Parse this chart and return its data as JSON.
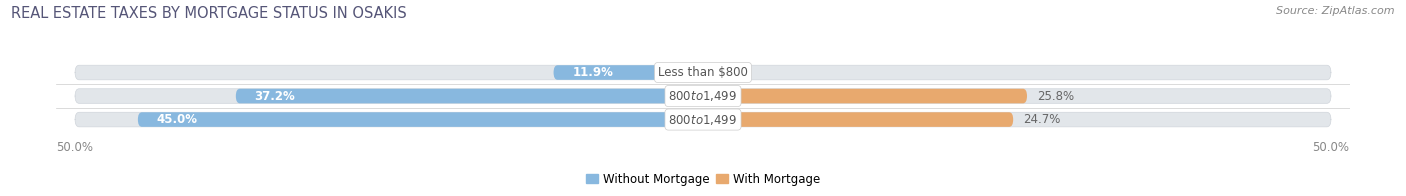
{
  "title": "REAL ESTATE TAXES BY MORTGAGE STATUS IN OSAKIS",
  "source": "Source: ZipAtlas.com",
  "rows": [
    {
      "label": "Less than $800",
      "without_mortgage": 11.9,
      "with_mortgage": 0.0
    },
    {
      "label": "$800 to $1,499",
      "without_mortgage": 37.2,
      "with_mortgage": 25.8
    },
    {
      "label": "$800 to $1,499",
      "without_mortgage": 45.0,
      "with_mortgage": 24.7
    }
  ],
  "x_min": -50.0,
  "x_max": 50.0,
  "x_tick_labels_left": "50.0%",
  "x_tick_labels_right": "50.0%",
  "color_without": "#88b8df",
  "color_with": "#e8a96e",
  "bar_height": 0.62,
  "bg_color": "#ffffff",
  "bar_bg_color": "#e2e6ea",
  "bar_bg_outline": "#d0d5db",
  "label_fontsize": 8.5,
  "pct_fontsize": 8.5,
  "title_fontsize": 10.5,
  "source_fontsize": 8.0,
  "tick_fontsize": 8.5,
  "title_color": "#555577",
  "source_color": "#888888",
  "tick_color": "#888888",
  "pct_inside_color": "#ffffff",
  "pct_outside_color": "#666666",
  "label_center_color": "#555555",
  "legend_without": "Without Mortgage",
  "legend_with": "With Mortgage"
}
